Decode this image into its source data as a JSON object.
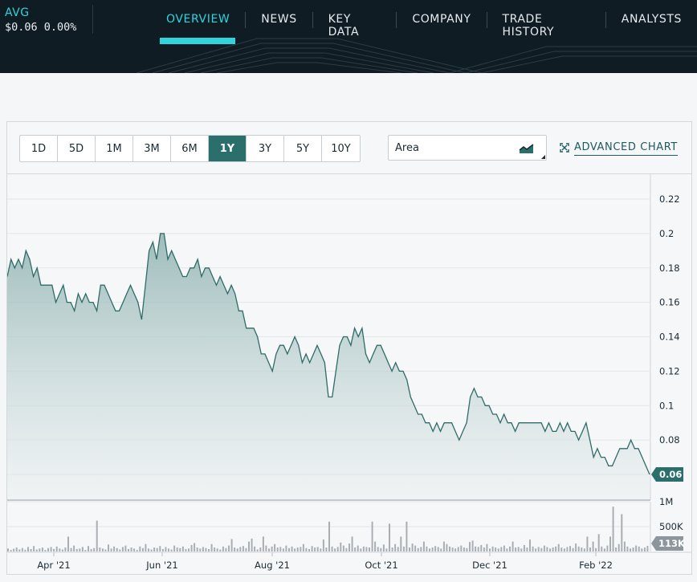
{
  "ticker": {
    "symbol": "AVG",
    "price_line": "$0.06 0.00%"
  },
  "nav": {
    "tabs": [
      "OVERVIEW",
      "NEWS",
      "KEY DATA",
      "COMPANY",
      "TRADE HISTORY",
      "ANALYSTS"
    ],
    "active": "OVERVIEW"
  },
  "ranges": {
    "options": [
      "1D",
      "5D",
      "1M",
      "3M",
      "6M",
      "1Y",
      "3Y",
      "5Y",
      "10Y"
    ],
    "active": "1Y"
  },
  "chart_type_select": {
    "value": "Area"
  },
  "advanced_chart": {
    "label": "ADVANCED CHART"
  },
  "colors": {
    "accent": "#2fd4dc",
    "chart_line": "#2f6b67",
    "active_range": "#2a6f6c",
    "header_bg": "#0f1c24",
    "volume_bar": "#a9aeb3"
  },
  "chart_data": [
    {
      "type": "area",
      "x_tick_labels": [
        "Apr '21",
        "Jun '21",
        "Aug '21",
        "Oct '21",
        "Dec '21",
        "Feb '22"
      ],
      "y_tick_labels": [
        "0.22",
        "0.2",
        "0.18",
        "0.16",
        "0.14",
        "0.12",
        "0.1",
        "0.08"
      ],
      "ylim": [
        0.06,
        0.22
      ],
      "grid": true,
      "last_value_label": "0.06",
      "values": [
        0.175,
        0.185,
        0.18,
        0.185,
        0.18,
        0.19,
        0.185,
        0.175,
        0.18,
        0.17,
        0.17,
        0.17,
        0.17,
        0.16,
        0.165,
        0.17,
        0.16,
        0.16,
        0.155,
        0.165,
        0.16,
        0.165,
        0.16,
        0.16,
        0.155,
        0.17,
        0.17,
        0.165,
        0.16,
        0.155,
        0.155,
        0.16,
        0.165,
        0.17,
        0.165,
        0.16,
        0.15,
        0.17,
        0.19,
        0.195,
        0.185,
        0.2,
        0.2,
        0.185,
        0.19,
        0.185,
        0.18,
        0.175,
        0.175,
        0.18,
        0.18,
        0.185,
        0.175,
        0.18,
        0.18,
        0.175,
        0.17,
        0.175,
        0.17,
        0.165,
        0.17,
        0.165,
        0.155,
        0.155,
        0.145,
        0.145,
        0.145,
        0.14,
        0.13,
        0.13,
        0.125,
        0.12,
        0.13,
        0.135,
        0.135,
        0.13,
        0.135,
        0.14,
        0.135,
        0.125,
        0.13,
        0.125,
        0.13,
        0.135,
        0.13,
        0.125,
        0.105,
        0.105,
        0.12,
        0.135,
        0.14,
        0.14,
        0.135,
        0.145,
        0.14,
        0.145,
        0.13,
        0.125,
        0.13,
        0.135,
        0.135,
        0.13,
        0.125,
        0.12,
        0.125,
        0.12,
        0.12,
        0.115,
        0.105,
        0.1,
        0.095,
        0.095,
        0.09,
        0.09,
        0.085,
        0.09,
        0.085,
        0.09,
        0.09,
        0.09,
        0.085,
        0.08,
        0.085,
        0.09,
        0.105,
        0.11,
        0.105,
        0.105,
        0.1,
        0.1,
        0.095,
        0.095,
        0.09,
        0.095,
        0.09,
        0.09,
        0.085,
        0.09,
        0.09,
        0.09,
        0.09,
        0.09,
        0.09,
        0.09,
        0.085,
        0.09,
        0.085,
        0.085,
        0.09,
        0.085,
        0.09,
        0.085,
        0.085,
        0.08,
        0.085,
        0.09,
        0.08,
        0.07,
        0.075,
        0.07,
        0.07,
        0.065,
        0.065,
        0.07,
        0.075,
        0.075,
        0.075,
        0.08,
        0.075,
        0.075,
        0.07,
        0.065,
        0.06
      ]
    },
    {
      "type": "bar",
      "name": "volume",
      "y_tick_labels": [
        "1M",
        "500K"
      ],
      "last_value_label": "113K",
      "values_k": [
        60,
        30,
        55,
        80,
        40,
        70,
        35,
        90,
        50,
        110,
        40,
        60,
        80,
        30,
        70,
        90,
        50,
        100,
        60,
        40,
        80,
        300,
        70,
        120,
        50,
        60,
        90,
        30,
        110,
        50,
        70,
        620,
        80,
        60,
        40,
        140,
        60,
        100,
        70,
        40,
        90,
        120,
        50,
        80,
        60,
        30,
        100,
        70,
        150,
        60,
        40,
        80,
        70,
        110,
        50,
        90,
        60,
        40,
        120,
        80,
        70,
        100,
        50,
        60,
        130,
        170,
        80,
        60,
        90,
        70,
        50,
        150,
        80,
        60,
        40,
        100,
        70,
        120,
        250,
        80,
        60,
        90,
        110,
        70,
        200,
        260,
        100,
        40,
        80,
        300,
        120,
        60,
        100,
        150,
        80,
        90,
        60,
        120,
        70,
        100,
        60,
        80,
        90,
        150,
        70,
        50,
        110,
        80,
        90,
        60,
        240,
        80,
        600,
        100,
        60,
        90,
        180,
        120,
        70,
        160,
        300,
        80,
        120,
        60,
        100,
        90,
        80,
        600,
        200,
        90,
        70,
        140,
        60,
        560,
        80,
        150,
        90,
        300,
        100,
        600,
        80,
        160,
        120,
        70,
        90,
        200,
        100,
        60,
        80,
        110,
        90,
        60,
        200,
        150,
        100,
        80,
        60,
        90,
        120,
        80,
        70,
        190,
        220,
        100,
        90,
        130,
        80,
        150,
        60,
        100,
        80,
        60,
        90,
        120,
        60,
        100,
        200,
        80,
        90,
        60,
        130,
        80,
        240,
        100,
        60,
        90,
        70,
        120,
        90,
        60,
        80,
        100,
        150,
        80,
        60,
        90,
        110,
        70,
        160,
        100,
        80,
        60,
        300,
        80,
        200,
        70,
        350,
        100,
        60,
        120,
        300,
        900,
        80,
        150,
        750,
        200,
        100,
        60,
        80,
        120,
        100,
        60,
        80,
        113
      ]
    }
  ]
}
